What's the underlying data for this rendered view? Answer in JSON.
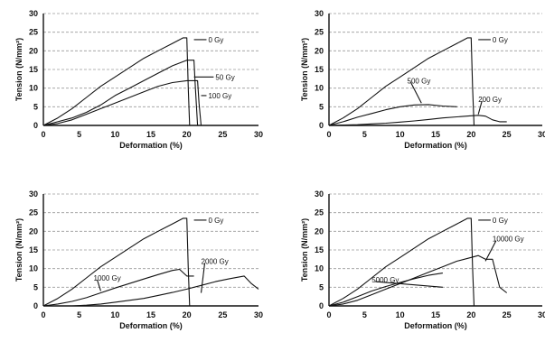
{
  "chart_data": [
    {
      "type": "line",
      "xlabel": "Deformation (%)",
      "ylabel": "Tension (N/mm²)",
      "xlim": [
        0,
        30
      ],
      "ylim": [
        0,
        30
      ],
      "xticks": [
        0,
        5,
        10,
        15,
        20,
        25,
        30
      ],
      "yticks": [
        0,
        5,
        10,
        15,
        20,
        25,
        30
      ],
      "grid": "horizontal-dashed",
      "series": [
        {
          "name": "0 Gy",
          "x": [
            0,
            2,
            4,
            6,
            8,
            10,
            12,
            14,
            16,
            18,
            19.5,
            20,
            20.2,
            20.4
          ],
          "y": [
            0,
            2,
            4.5,
            7.5,
            10.5,
            13,
            15.5,
            18,
            20,
            22,
            23.5,
            23.5,
            10,
            0
          ],
          "label_at": [
            21,
            23
          ],
          "label_text_at": [
            23,
            23
          ]
        },
        {
          "name": "50 Gy",
          "x": [
            0,
            2,
            4,
            6,
            8,
            10,
            12,
            14,
            16,
            18,
            20,
            21,
            21.2,
            21.5
          ],
          "y": [
            0,
            1,
            2,
            3.5,
            5.5,
            8,
            10,
            12,
            14,
            16,
            17.5,
            17.5,
            10,
            0
          ],
          "label_at": [
            21,
            13
          ],
          "label_text_at": [
            24,
            13
          ]
        },
        {
          "name": "100 Gy",
          "x": [
            0,
            2,
            4,
            6,
            8,
            10,
            12,
            14,
            16,
            18,
            20,
            21.5,
            21.7,
            22
          ],
          "y": [
            0,
            0.5,
            1.5,
            3,
            4.5,
            6,
            7.5,
            9,
            10.5,
            11.5,
            12,
            12,
            6,
            0
          ],
          "label_at": [
            22,
            8
          ],
          "label_text_at": [
            23,
            8
          ]
        }
      ]
    },
    {
      "type": "line",
      "xlabel": "Deformation (%)",
      "ylabel": "Tension (N/mm²)",
      "xlim": [
        0,
        30
      ],
      "ylim": [
        0,
        30
      ],
      "xticks": [
        0,
        5,
        10,
        15,
        20,
        25,
        30
      ],
      "yticks": [
        0,
        5,
        10,
        15,
        20,
        25,
        30
      ],
      "grid": "horizontal-dashed",
      "series": [
        {
          "name": "0 Gy",
          "x": [
            0,
            2,
            4,
            6,
            8,
            10,
            12,
            14,
            16,
            18,
            19.5,
            20,
            20.2,
            20.4
          ],
          "y": [
            0,
            2,
            4.5,
            7.5,
            10.5,
            13,
            15.5,
            18,
            20,
            22,
            23.5,
            23.5,
            10,
            0
          ],
          "label_at": [
            21,
            23
          ],
          "label_text_at": [
            23,
            23
          ]
        },
        {
          "name": "500 Gy",
          "x": [
            0,
            2,
            4,
            6,
            8,
            10,
            12,
            14,
            16,
            18
          ],
          "y": [
            0,
            1,
            2.2,
            3.2,
            4.2,
            5,
            5.5,
            5.6,
            5.2,
            5
          ],
          "label_at": [
            13,
            6
          ],
          "label_text_at": [
            11,
            12
          ]
        },
        {
          "name": "200 Gy",
          "x": [
            0,
            2,
            4,
            6,
            8,
            10,
            12,
            14,
            16,
            18,
            20,
            21,
            22,
            23,
            24,
            25
          ],
          "y": [
            0,
            0.1,
            0.2,
            0.4,
            0.6,
            0.9,
            1.2,
            1.6,
            2,
            2.3,
            2.6,
            2.7,
            2.5,
            1.5,
            1,
            1
          ],
          "label_at": [
            21,
            3
          ],
          "label_text_at": [
            21,
            7
          ]
        }
      ]
    },
    {
      "type": "line",
      "xlabel": "Deformation (%)",
      "ylabel": "Tension (N/mm²)",
      "xlim": [
        0,
        30
      ],
      "ylim": [
        0,
        30
      ],
      "xticks": [
        0,
        5,
        10,
        15,
        20,
        25,
        30
      ],
      "yticks": [
        0,
        5,
        10,
        15,
        20,
        25,
        30
      ],
      "grid": "horizontal-dashed",
      "series": [
        {
          "name": "0 Gy",
          "x": [
            0,
            2,
            4,
            6,
            8,
            10,
            12,
            14,
            16,
            18,
            19.5,
            20,
            20.2,
            20.4
          ],
          "y": [
            0,
            2,
            4.5,
            7.5,
            10.5,
            13,
            15.5,
            18,
            20,
            22,
            23.5,
            23.5,
            10,
            0
          ],
          "label_at": [
            21,
            23
          ],
          "label_text_at": [
            23,
            23
          ]
        },
        {
          "name": "1000 Gy",
          "x": [
            0,
            2,
            4,
            6,
            8,
            10,
            12,
            14,
            16,
            18,
            19,
            20,
            21
          ],
          "y": [
            0,
            0.5,
            1.2,
            2.2,
            3.5,
            4.8,
            6,
            7.2,
            8.4,
            9.5,
            9.8,
            8,
            8
          ],
          "label_at": [
            8,
            4
          ],
          "label_text_at": [
            7,
            7.5
          ]
        },
        {
          "name": "2000 Gy",
          "x": [
            0,
            2,
            4,
            6,
            8,
            10,
            12,
            14,
            16,
            18,
            20,
            22,
            24,
            26,
            28,
            29,
            30
          ],
          "y": [
            0,
            0,
            0,
            0.2,
            0.5,
            1,
            1.5,
            2,
            2.8,
            3.6,
            4.5,
            5.5,
            6.5,
            7.3,
            8,
            6,
            4.5
          ],
          "label_at": [
            22,
            3.5
          ],
          "label_text_at": [
            22,
            12
          ]
        }
      ]
    },
    {
      "type": "line",
      "xlabel": "Deformation (%)",
      "ylabel": "Tension (N/mm²)",
      "xlim": [
        0,
        30
      ],
      "ylim": [
        0,
        30
      ],
      "xticks": [
        0,
        5,
        10,
        15,
        20,
        25,
        30
      ],
      "yticks": [
        0,
        5,
        10,
        15,
        20,
        25,
        30
      ],
      "grid": "horizontal-dashed",
      "series": [
        {
          "name": "0 Gy",
          "x": [
            0,
            2,
            4,
            6,
            8,
            10,
            12,
            14,
            16,
            18,
            19.5,
            20,
            20.2,
            20.4
          ],
          "y": [
            0,
            2,
            4.5,
            7.5,
            10.5,
            13,
            15.5,
            18,
            20,
            22,
            23.5,
            23.5,
            10,
            0
          ],
          "label_at": [
            21,
            23
          ],
          "label_text_at": [
            23,
            23
          ]
        },
        {
          "name": "5000 Gy",
          "x": [
            0,
            2,
            4,
            6,
            8,
            10,
            12,
            14,
            16
          ],
          "y": [
            0,
            1,
            2.5,
            4,
            5.2,
            6.3,
            7.3,
            8.2,
            8.8
          ],
          "label_at": [
            16,
            5
          ],
          "label_text_at": [
            6,
            7
          ]
        },
        {
          "name": "10000 Gy",
          "x": [
            0,
            2,
            4,
            6,
            8,
            10,
            12,
            14,
            16,
            18,
            20,
            21,
            22,
            23,
            24,
            25
          ],
          "y": [
            0,
            0.5,
            1.5,
            3,
            4.5,
            6,
            7.5,
            9,
            10.5,
            12,
            13,
            13.5,
            12.5,
            12.5,
            5,
            3.5
          ],
          "label_at": [
            22,
            12
          ],
          "label_text_at": [
            23,
            18
          ]
        }
      ]
    }
  ]
}
